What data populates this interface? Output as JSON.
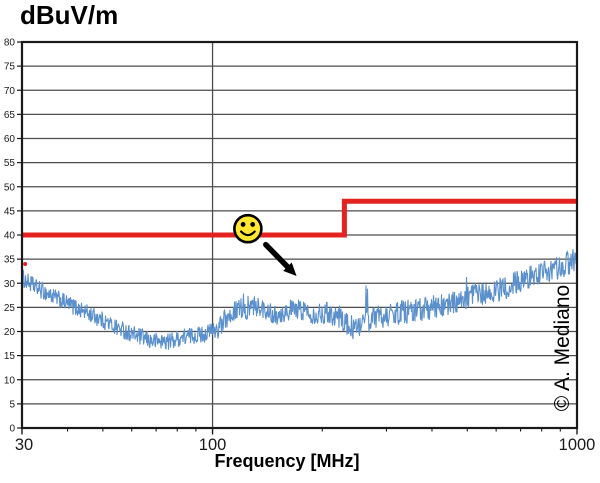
{
  "chart_data": {
    "type": "line",
    "title": "dBuV/m",
    "xlabel": "Frequency [MHz]",
    "watermark": "© A. Mediano",
    "x_scale": "log",
    "xlim": [
      30,
      1000
    ],
    "ylim": [
      0,
      80
    ],
    "x_major_ticks": [
      30,
      100,
      1000
    ],
    "x_minor_ticks": [
      40,
      50,
      60,
      70,
      80,
      90,
      200,
      300,
      400,
      500,
      600,
      700,
      800,
      900
    ],
    "y_ticks": [
      0,
      5,
      10,
      15,
      20,
      25,
      30,
      35,
      40,
      45,
      50,
      55,
      60,
      65,
      70,
      75,
      80
    ],
    "grid": {
      "horizontal": true,
      "vertical_at": [
        100
      ]
    },
    "legend": "none",
    "colors": {
      "trace": "#5b90cc",
      "limit": "#e42320",
      "grid": "#4d4d4d",
      "frame": "#1a1a1a",
      "text": "#1a1a1a",
      "smiley_fill": "#ffe733",
      "smiley_stroke": "#000000",
      "arrow": "#000000",
      "marker": "#e42320"
    },
    "series": [
      {
        "name": "radiated-emissions-measurement",
        "style": "noisy-line",
        "anchors": [
          [
            30,
            31
          ],
          [
            33,
            29
          ],
          [
            37,
            27
          ],
          [
            42,
            25
          ],
          [
            48,
            23
          ],
          [
            54,
            21
          ],
          [
            60,
            19.5
          ],
          [
            68,
            18
          ],
          [
            76,
            18
          ],
          [
            85,
            19
          ],
          [
            95,
            19.5
          ],
          [
            103,
            20.5
          ],
          [
            110,
            23
          ],
          [
            118,
            25
          ],
          [
            126,
            24.5
          ],
          [
            134,
            25.5
          ],
          [
            142,
            24
          ],
          [
            152,
            23.5
          ],
          [
            163,
            24.5
          ],
          [
            178,
            24.5
          ],
          [
            192,
            23.5
          ],
          [
            208,
            24
          ],
          [
            224,
            23
          ],
          [
            238,
            21
          ],
          [
            250,
            20.5
          ],
          [
            264,
            22
          ],
          [
            282,
            23
          ],
          [
            305,
            23.5
          ],
          [
            335,
            24
          ],
          [
            365,
            24.5
          ],
          [
            400,
            25
          ],
          [
            440,
            25.5
          ],
          [
            485,
            26.5
          ],
          [
            530,
            27.5
          ],
          [
            580,
            28
          ],
          [
            635,
            29
          ],
          [
            695,
            30.5
          ],
          [
            760,
            31.5
          ],
          [
            830,
            32.5
          ],
          [
            905,
            33.5
          ],
          [
            1000,
            35
          ]
        ],
        "noise_bands": [
          {
            "f_max": 100,
            "amp": 1.8
          },
          {
            "f_max": 210,
            "amp": 2.2
          },
          {
            "f_max": 1001,
            "amp": 2.5
          }
        ],
        "spikes": [
          {
            "f_min": 104,
            "f_max": 152,
            "prob": 0.02,
            "max": 4
          },
          {
            "f_min": 240,
            "f_max": 1001,
            "prob": 0.012,
            "max": 6.5
          },
          {
            "f_min": 890,
            "f_max": 1001,
            "prob": 0.02,
            "max": 5.5
          }
        ]
      },
      {
        "name": "emc-limit-line",
        "style": "step",
        "points": [
          [
            30,
            40
          ],
          [
            230,
            40
          ],
          [
            230,
            47
          ],
          [
            1000,
            47
          ]
        ]
      }
    ],
    "annotations": {
      "smiley": {
        "freq_mhz": 125,
        "level_db": 41.3
      },
      "arrow": {
        "from": [
          140,
          38
        ],
        "to": [
          170,
          31.5
        ]
      },
      "start_marker": {
        "freq_mhz": 30.6,
        "level_db": 34
      }
    }
  }
}
